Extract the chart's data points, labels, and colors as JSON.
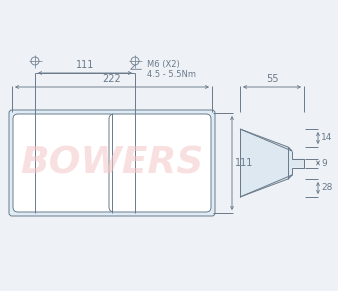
{
  "bg_color": "#eef2f6",
  "lc": "#6a7a8a",
  "wm_color": "#f5c8c8",
  "wm_text": "BOWERS",
  "wm_alpha": 0.55,
  "dim_222": "222",
  "dim_111_right": "111",
  "dim_55": "55",
  "dim_14": "14",
  "dim_9": "9",
  "dim_28": "28",
  "dim_111_bot": "111",
  "bolt_label": "M6 (X2)\n4.5 - 5.5Nm",
  "lens_fill": "#e0ecf5",
  "outer_fill": "#cde0ee",
  "side_fill": "#dde8f0"
}
